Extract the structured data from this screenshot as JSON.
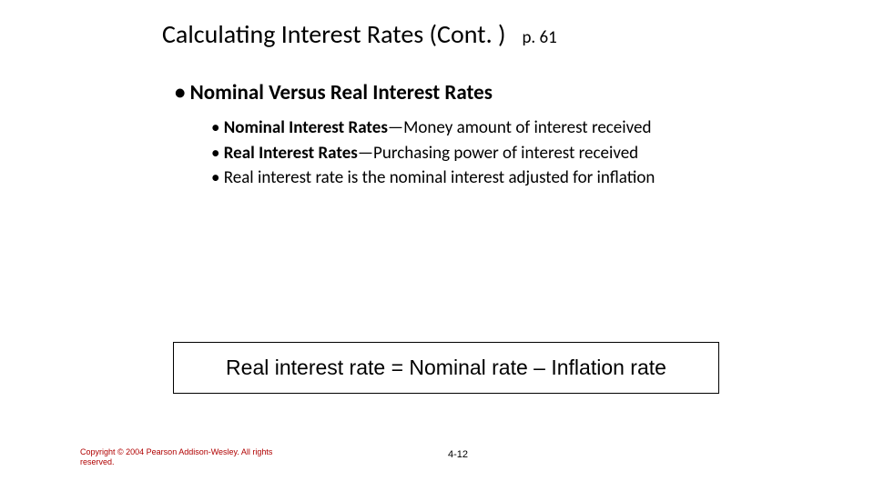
{
  "title": "Calculating Interest Rates (Cont. )",
  "page_ref": "p. 61",
  "heading_l1": "Nominal Versus Real Interest Rates",
  "sub_items": [
    {
      "bold": "Nominal Interest Rates",
      "rest": "—Money amount of interest received"
    },
    {
      "bold": "Real Interest Rates",
      "rest": "—Purchasing power of interest received"
    },
    {
      "bold": "",
      "rest": "Real interest rate is the nominal interest adjusted for inflation"
    }
  ],
  "formula": "Real interest rate = Nominal rate – Inflation rate",
  "copyright": "Copyright © 2004 Pearson Addison-Wesley. All rights reserved.",
  "slide_number": "4-12",
  "colors": {
    "background": "#ffffff",
    "text": "#000000",
    "copyright": "#b00000",
    "box_border": "#000000"
  }
}
